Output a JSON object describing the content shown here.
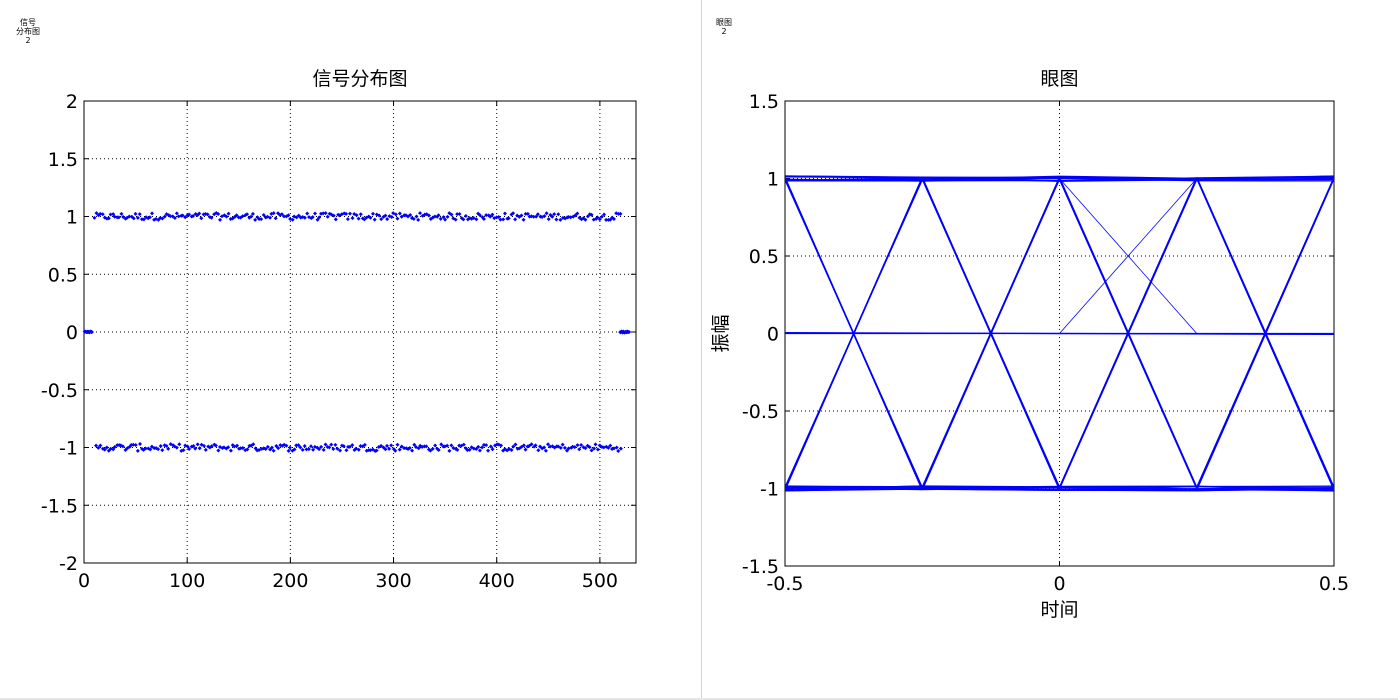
{
  "figures": [
    {
      "tag_lines": [
        "信号",
        "分布图",
        "2"
      ]
    },
    {
      "tag_lines": [
        "眼图",
        "2"
      ]
    }
  ],
  "chart_data": [
    {
      "type": "scatter",
      "title": "信号分布图",
      "xlabel": "",
      "ylabel": "",
      "xlim": [
        0,
        535
      ],
      "ylim": [
        -2,
        2
      ],
      "xticks": [
        "0",
        "100",
        "200",
        "300",
        "400",
        "500"
      ],
      "yticks": [
        "-2",
        "-1.5",
        "-1",
        "-0.5",
        "0",
        "0.5",
        "1",
        "1.5",
        "2"
      ],
      "grid": true,
      "marker_color": "#0000ff",
      "series": [
        {
          "x_range": [
            10,
            520
          ],
          "level": 1,
          "spread": 0.03
        },
        {
          "x_range": [
            12,
            520
          ],
          "level": -1,
          "spread": 0.03
        },
        {
          "x_range": [
            1,
            8
          ],
          "level": 0,
          "spread": 0.005
        },
        {
          "x_range": [
            520,
            528
          ],
          "level": 0,
          "spread": 0.005
        }
      ]
    },
    {
      "type": "line",
      "title": "眼图",
      "xlabel": "时间",
      "ylabel": "振幅",
      "xlim": [
        -0.5,
        0.5
      ],
      "ylim": [
        -1.5,
        1.5
      ],
      "xticks": [
        "-0.5",
        "0",
        "0.5"
      ],
      "yticks": [
        "-1.5",
        "-1",
        "-0.5",
        "0",
        "0.5",
        "1",
        "1.5"
      ],
      "grid": true,
      "line_color": "#0000ff",
      "symbol_period": 0.25,
      "levels": [
        -1,
        1
      ]
    }
  ]
}
